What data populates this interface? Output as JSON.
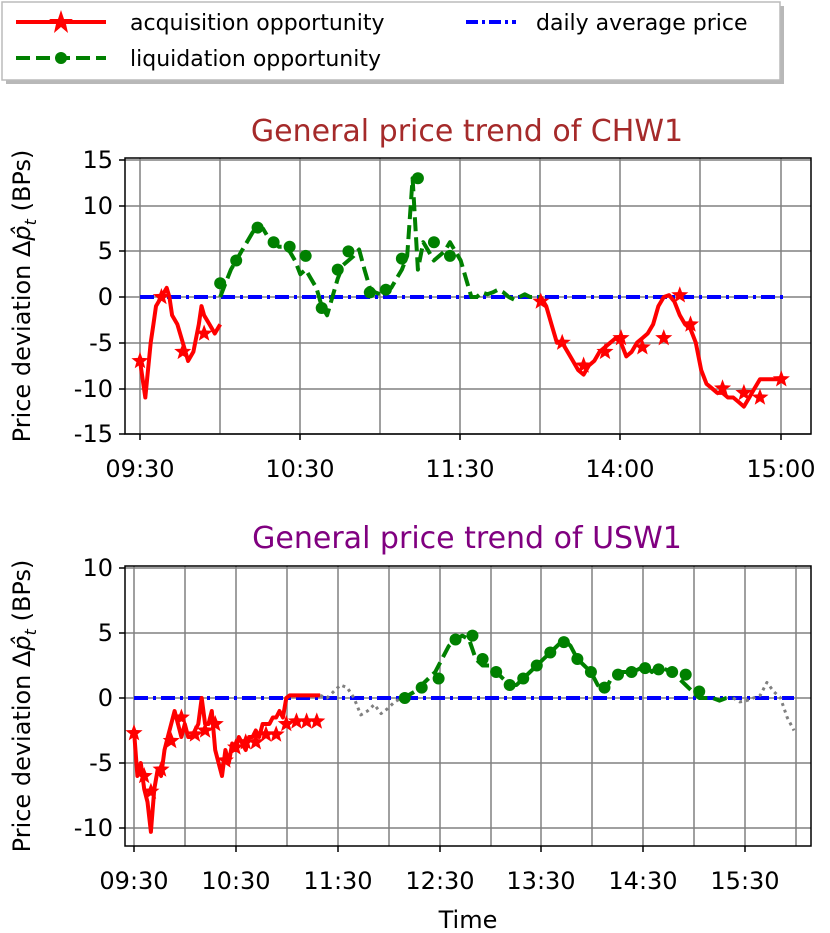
{
  "legend": {
    "acquisition": "acquisition opportunity",
    "liquidation": "liquidation opportunity",
    "average": "daily average price"
  },
  "colors": {
    "acquisition": "#ff0000",
    "liquidation": "#008000",
    "average": "#0000ff",
    "other": "#808080",
    "title_top": "#a52a2a",
    "title_bottom": "#800080"
  },
  "chart_data": [
    {
      "type": "line",
      "title": "General price trend of CHW1",
      "ylabel_prefix": "Price deviation",
      "ylabel_unit": "(BPs)",
      "xlabel": "",
      "x_tick_labels": [
        "09:30",
        "10:30",
        "11:30",
        "14:00",
        "15:00"
      ],
      "ylim": [
        -15,
        15
      ],
      "y_ticks": [
        15,
        10,
        5,
        0,
        -5,
        -10,
        -15
      ],
      "y_tick_labels": [
        "15",
        "10",
        "5",
        "0",
        "-5",
        "-10",
        "-15"
      ],
      "xlim": [
        0,
        241
      ],
      "grid": true,
      "segments": [
        {
          "series": "acquisition",
          "x": [
            0,
            2,
            4,
            5,
            6,
            8,
            10,
            11,
            12,
            14,
            16,
            18,
            20,
            22,
            23,
            24,
            26,
            28,
            30
          ],
          "y": [
            -7,
            -11,
            -5,
            -3,
            -1,
            0,
            1,
            0,
            -2,
            -3,
            -5,
            -7,
            -6,
            -3,
            -1,
            -2,
            -3,
            -4,
            -3
          ]
        },
        {
          "series": "liquidation",
          "x": [
            30,
            32,
            34,
            36,
            38,
            40,
            42,
            44,
            46,
            48,
            50,
            52,
            54,
            56,
            58,
            60,
            62,
            64,
            66,
            68,
            70,
            72,
            74,
            76,
            78,
            80,
            82,
            84,
            86,
            88,
            90,
            92,
            94,
            96,
            98,
            100,
            102,
            104,
            106,
            108,
            110,
            112,
            114,
            116,
            118,
            120,
            122,
            124,
            126,
            128,
            130,
            132,
            134,
            136,
            138,
            140,
            142,
            144,
            146,
            148,
            150
          ],
          "y": [
            0,
            1.5,
            3,
            4,
            5,
            6,
            7,
            7.8,
            7.5,
            6.5,
            6,
            5.5,
            5.5,
            5,
            4,
            2.5,
            3,
            2,
            1,
            -1,
            -2,
            0,
            2,
            3.5,
            4,
            4.5,
            5.2,
            3,
            1,
            0.5,
            0.3,
            0.5,
            1,
            2,
            3,
            4.5,
            13,
            3,
            6,
            5,
            4,
            4.5,
            5,
            6,
            5,
            4,
            2,
            0,
            0,
            0.5,
            0.3,
            0.5,
            0.8,
            0.5,
            0,
            -0.3,
            0,
            0.3,
            0,
            0,
            0
          ]
        },
        {
          "series": "acquisition",
          "x": [
            150,
            152,
            154,
            156,
            158,
            160,
            162,
            164,
            166,
            168,
            170,
            172,
            174,
            176,
            178,
            180,
            182,
            184,
            186,
            188,
            190,
            192,
            194,
            196,
            198,
            200,
            202,
            204,
            206,
            208,
            210,
            212,
            214,
            216,
            218,
            220,
            222,
            224,
            226,
            228,
            230,
            232,
            234,
            236,
            238,
            240
          ],
          "y": [
            0,
            -1,
            -3,
            -5,
            -5,
            -6,
            -7,
            -8,
            -8.5,
            -7.5,
            -7,
            -6,
            -5.5,
            -5,
            -4.5,
            -5,
            -6.5,
            -6,
            -5,
            -4.5,
            -4,
            -3,
            -1,
            0,
            0.2,
            -0.5,
            -2,
            -3,
            -3.5,
            -5,
            -8,
            -9.5,
            -10,
            -10.5,
            -10.5,
            -11,
            -11,
            -11.5,
            -12,
            -11,
            -10,
            -9,
            -9,
            -9,
            -9,
            -9
          ]
        }
      ],
      "markers": [
        {
          "series": "acquisition",
          "x": [
            0,
            8,
            16,
            24,
            150,
            158,
            166,
            174,
            180,
            188,
            196,
            202,
            206,
            218,
            226,
            232,
            240
          ],
          "y": [
            -7,
            0,
            -6,
            -4,
            -0.5,
            -5,
            -7.5,
            -6,
            -4.5,
            -5.5,
            -4.5,
            0.2,
            -3,
            -10,
            -10.5,
            -11,
            -9
          ]
        },
        {
          "series": "liquidation",
          "x": [
            30,
            36,
            44,
            50,
            56,
            62,
            68,
            74,
            78,
            86,
            92,
            98,
            104,
            110,
            116
          ],
          "y": [
            1.5,
            4,
            7.6,
            6,
            5.5,
            4.5,
            -1.2,
            3,
            5,
            0.5,
            0.8,
            4.2,
            13,
            6,
            4.5
          ]
        }
      ],
      "average": 0
    },
    {
      "type": "line",
      "title": "General price trend of USW1",
      "ylabel_prefix": "Price deviation",
      "ylabel_unit": "(BPs)",
      "xlabel": "Time",
      "x_tick_labels": [
        "09:30",
        "10:30",
        "11:30",
        "12:30",
        "13:30",
        "14:30",
        "15:30"
      ],
      "ylim": [
        -11,
        10
      ],
      "y_ticks": [
        10,
        5,
        0,
        -5,
        -10
      ],
      "y_tick_labels": [
        "10",
        "5",
        "0",
        "-5",
        "-10"
      ],
      "xlim": [
        0,
        390
      ],
      "grid": true,
      "segments": [
        {
          "series": "acquisition",
          "x": [
            0,
            2,
            4,
            6,
            8,
            10,
            12,
            14,
            16,
            18,
            20,
            22,
            24,
            26,
            28,
            30,
            32,
            34,
            36,
            38,
            40,
            42,
            44,
            46,
            48,
            50,
            52,
            54,
            56,
            58,
            60,
            62,
            64,
            66,
            68,
            70,
            72,
            74,
            76,
            78,
            80,
            82,
            84,
            86,
            88,
            90,
            92,
            94,
            96,
            98,
            100,
            102,
            104,
            106,
            108,
            110
          ],
          "y": [
            -2.5,
            -6,
            -5,
            -7,
            -8,
            -10.3,
            -7,
            -5.5,
            -6,
            -4,
            -3,
            -2,
            -1,
            -2,
            -3,
            -2,
            -3,
            -3,
            -2.5,
            -2,
            0,
            -2,
            -2,
            -1,
            -4,
            -5,
            -6,
            -4,
            -5,
            -3.5,
            -4,
            -3,
            -3.5,
            -4,
            -3,
            -3,
            -2.5,
            -3,
            -2,
            -2,
            -2,
            -1.5,
            -1.5,
            -1,
            -1.5,
            0,
            0.2,
            0.2,
            0.2,
            0.2,
            0.2,
            0.2,
            0.2,
            0.2,
            0.2,
            0.2
          ]
        },
        {
          "series": "other",
          "x": [
            110,
            114,
            118,
            122,
            126,
            130,
            134,
            138,
            142,
            146,
            150,
            154,
            158
          ],
          "y": [
            0.2,
            0,
            0.5,
            1,
            0.8,
            0,
            -1.3,
            -1,
            -0.5,
            -1.2,
            -0.8,
            -0.3,
            0
          ]
        },
        {
          "series": "liquidation",
          "x": [
            158,
            162,
            166,
            170,
            174,
            178,
            182,
            186,
            190,
            194,
            198,
            202,
            206,
            210,
            214,
            218,
            222,
            226,
            230,
            234,
            238,
            242,
            246,
            250,
            254,
            258,
            262,
            266,
            270,
            274,
            278,
            282,
            286,
            290,
            294,
            298,
            302,
            306,
            310,
            314,
            318,
            322,
            326,
            330,
            334,
            338,
            342,
            346,
            350,
            354
          ],
          "y": [
            0,
            0.2,
            0.5,
            1,
            1.5,
            2,
            3,
            4,
            4.5,
            4.8,
            4.5,
            3,
            2.5,
            2.5,
            2,
            1.5,
            1,
            1,
            1.5,
            2,
            2.5,
            3,
            3.5,
            4,
            4.5,
            4,
            3,
            2.5,
            2,
            1,
            0.5,
            1.5,
            2,
            2,
            2,
            2.2,
            2.5,
            2,
            2.5,
            2.2,
            2,
            1.5,
            1,
            0.5,
            0,
            0,
            0,
            -0.2,
            0,
            0
          ]
        },
        {
          "series": "other",
          "x": [
            354,
            358,
            362,
            366,
            370,
            374,
            378,
            382,
            386,
            390
          ],
          "y": [
            0,
            -0.3,
            -0.2,
            0,
            0.2,
            1.2,
            0.5,
            0,
            -1.5,
            -2.5
          ]
        }
      ],
      "markers": [
        {
          "series": "acquisition",
          "x": [
            0,
            6,
            10,
            16,
            22,
            28,
            36,
            42,
            48,
            54,
            60,
            66,
            72,
            78,
            84,
            90,
            96,
            102,
            108
          ],
          "y": [
            -2.7,
            -6,
            -7.2,
            -5.5,
            -3.3,
            -1.5,
            -2.8,
            -2.5,
            -2,
            -4.8,
            -3.8,
            -3.4,
            -3.4,
            -2.8,
            -2.8,
            -2,
            -1.8,
            -1.8,
            -1.8
          ]
        },
        {
          "series": "liquidation",
          "x": [
            160,
            170,
            180,
            190,
            200,
            206,
            214,
            222,
            230,
            238,
            246,
            254,
            262,
            270,
            278,
            286,
            294,
            302,
            310,
            318,
            326,
            334
          ],
          "y": [
            0,
            0.8,
            1.5,
            4.5,
            4.8,
            3,
            2,
            1,
            1.5,
            2.5,
            3.5,
            4.3,
            3,
            2,
            0.8,
            1.8,
            2,
            2.3,
            2.2,
            2,
            1.8,
            0.5
          ]
        }
      ],
      "average": 0
    }
  ]
}
